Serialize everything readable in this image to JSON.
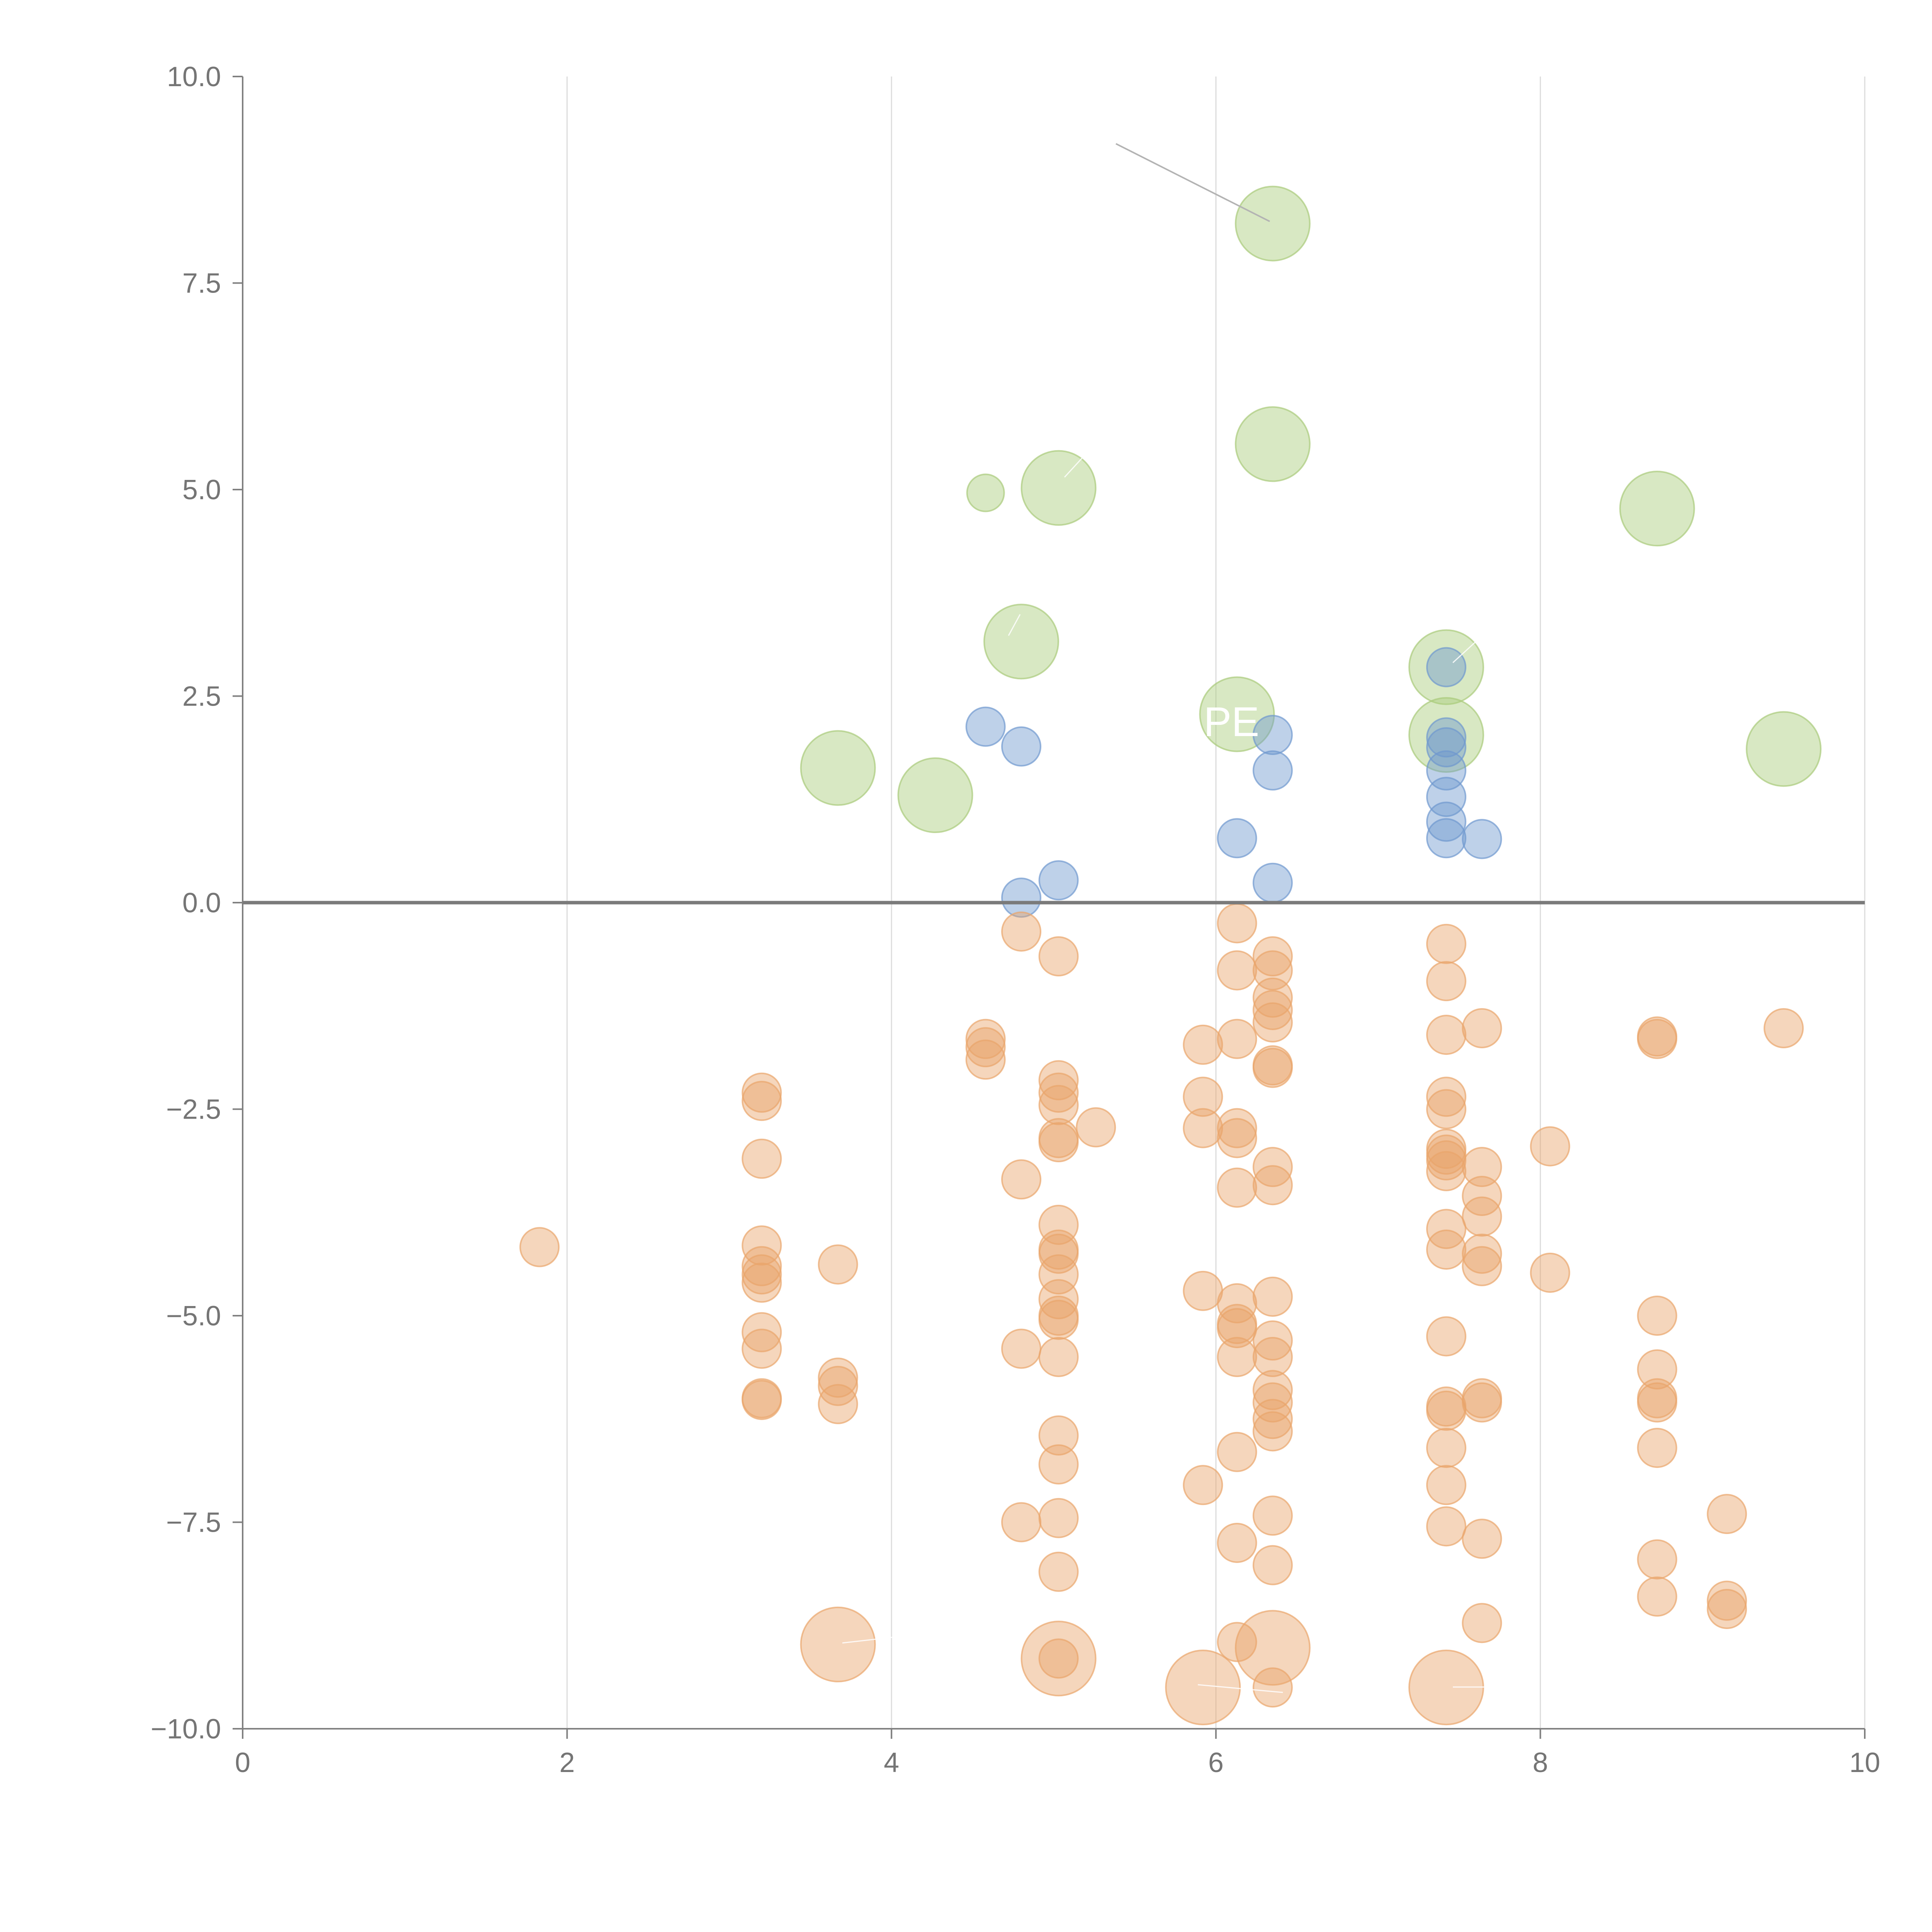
{
  "chart_data": {
    "type": "scatter",
    "title": "",
    "xlabel": "",
    "ylabel": "",
    "xlim": [
      0,
      10
    ],
    "ylim": [
      -10,
      10
    ],
    "x_ticks": [
      0,
      2,
      4,
      6,
      8,
      10
    ],
    "x_tick_labels": [
      "0",
      "2",
      "4",
      "6",
      "8",
      "10"
    ],
    "y_ticks": [
      -10,
      -7.5,
      -5,
      -2.5,
      0,
      2.5,
      5,
      7.5,
      10
    ],
    "y_tick_labels": [
      "−10.0",
      "−7.5",
      "−5.0",
      "−2.5",
      "0.0",
      "2.5",
      "5.0",
      "7.5",
      "10.0"
    ],
    "vertical_grid": true,
    "horizontal_grid": false,
    "zero_line": true,
    "legend": "none",
    "colors": {
      "green": "#a9cb7a",
      "blue": "#6f98cf",
      "orange": "#e9a56b",
      "axis": "#808080",
      "grid": "#dcdcdc"
    },
    "series": [
      {
        "color": "green",
        "points": [
          [
            6.35,
            8.22,
            "l"
          ],
          [
            6.35,
            5.55,
            "l"
          ],
          [
            5.03,
            5.02,
            "l"
          ],
          [
            4.58,
            4.96,
            "s"
          ],
          [
            8.72,
            4.77,
            "l"
          ],
          [
            4.8,
            3.16,
            "l"
          ],
          [
            7.42,
            2.85,
            "l"
          ],
          [
            6.13,
            2.28,
            "l"
          ],
          [
            7.42,
            2.03,
            "l"
          ],
          [
            9.5,
            1.86,
            "l"
          ],
          [
            3.67,
            1.63,
            "l"
          ],
          [
            4.27,
            1.3,
            "l"
          ]
        ]
      },
      {
        "color": "blue",
        "points": [
          [
            4.58,
            2.13
          ],
          [
            4.8,
            1.89
          ],
          [
            6.35,
            2.03
          ],
          [
            6.35,
            1.6
          ],
          [
            7.42,
            2.85
          ],
          [
            7.42,
            2.0
          ],
          [
            7.42,
            1.88
          ],
          [
            7.42,
            1.6
          ],
          [
            7.42,
            1.28
          ],
          [
            7.42,
            0.98
          ],
          [
            7.42,
            0.78
          ],
          [
            7.64,
            0.77
          ],
          [
            6.13,
            0.78
          ],
          [
            6.35,
            0.24
          ],
          [
            5.03,
            0.27
          ],
          [
            4.8,
            0.06
          ]
        ]
      },
      {
        "color": "orange",
        "points": [
          [
            1.83,
            -4.17
          ],
          [
            3.2,
            -2.3
          ],
          [
            3.2,
            -2.4
          ],
          [
            3.2,
            -3.1
          ],
          [
            3.2,
            -4.15
          ],
          [
            3.2,
            -4.4
          ],
          [
            3.2,
            -4.5
          ],
          [
            3.2,
            -4.6
          ],
          [
            3.2,
            -5.2
          ],
          [
            3.2,
            -5.4
          ],
          [
            3.2,
            -6.0
          ],
          [
            3.2,
            -6.02
          ],
          [
            3.67,
            -4.38
          ],
          [
            3.67,
            -5.75
          ],
          [
            3.67,
            -5.85
          ],
          [
            3.67,
            -6.07
          ],
          [
            4.58,
            -1.65
          ],
          [
            4.58,
            -1.75
          ],
          [
            4.58,
            -1.9
          ],
          [
            4.8,
            -0.35
          ],
          [
            4.8,
            -3.35
          ],
          [
            4.8,
            -5.4
          ],
          [
            4.8,
            -7.5
          ],
          [
            5.03,
            -0.65
          ],
          [
            5.03,
            -2.15
          ],
          [
            5.03,
            -2.3
          ],
          [
            5.03,
            -2.45
          ],
          [
            5.03,
            -2.85
          ],
          [
            5.03,
            -2.9
          ],
          [
            5.03,
            -3.9
          ],
          [
            5.03,
            -4.2
          ],
          [
            5.03,
            -4.25
          ],
          [
            5.03,
            -4.5
          ],
          [
            5.03,
            -4.8
          ],
          [
            5.03,
            -5.0
          ],
          [
            5.03,
            -5.05
          ],
          [
            5.03,
            -5.5
          ],
          [
            5.03,
            -6.45
          ],
          [
            5.03,
            -6.8
          ],
          [
            5.03,
            -7.45
          ],
          [
            5.03,
            -8.1
          ],
          [
            5.03,
            -9.15
          ],
          [
            5.26,
            -2.72
          ],
          [
            5.92,
            -1.72
          ],
          [
            5.92,
            -2.35
          ],
          [
            5.92,
            -2.73
          ],
          [
            5.92,
            -4.7
          ],
          [
            5.92,
            -7.05
          ],
          [
            6.13,
            -0.25
          ],
          [
            6.13,
            -0.82
          ],
          [
            6.13,
            -1.65
          ],
          [
            6.13,
            -2.73
          ],
          [
            6.13,
            -2.85
          ],
          [
            6.13,
            -3.45
          ],
          [
            6.13,
            -4.85
          ],
          [
            6.13,
            -5.1
          ],
          [
            6.13,
            -5.15
          ],
          [
            6.13,
            -5.5
          ],
          [
            6.13,
            -6.65
          ],
          [
            6.13,
            -7.75
          ],
          [
            6.13,
            -8.95
          ],
          [
            6.35,
            -0.65
          ],
          [
            6.35,
            -0.82
          ],
          [
            6.35,
            -1.15
          ],
          [
            6.35,
            -1.3
          ],
          [
            6.35,
            -1.45
          ],
          [
            6.35,
            -1.97
          ],
          [
            6.35,
            -2.0
          ],
          [
            6.35,
            -3.2
          ],
          [
            6.35,
            -3.42
          ],
          [
            6.35,
            -4.77
          ],
          [
            6.35,
            -5.3
          ],
          [
            6.35,
            -5.5
          ],
          [
            6.35,
            -5.9
          ],
          [
            6.35,
            -6.05
          ],
          [
            6.35,
            -6.25
          ],
          [
            6.35,
            -6.4
          ],
          [
            6.35,
            -7.42
          ],
          [
            6.35,
            -8.02
          ],
          [
            6.35,
            -9.5
          ],
          [
            7.42,
            -0.5
          ],
          [
            7.42,
            -0.95
          ],
          [
            7.42,
            -1.6
          ],
          [
            7.42,
            -2.35
          ],
          [
            7.42,
            -2.5
          ],
          [
            7.42,
            -2.98
          ],
          [
            7.42,
            -3.05
          ],
          [
            7.42,
            -3.12
          ],
          [
            7.42,
            -3.25
          ],
          [
            7.42,
            -3.95
          ],
          [
            7.42,
            -4.2
          ],
          [
            7.42,
            -5.25
          ],
          [
            7.42,
            -6.1
          ],
          [
            7.42,
            -6.15
          ],
          [
            7.42,
            -6.6
          ],
          [
            7.42,
            -7.05
          ],
          [
            7.42,
            -7.55
          ],
          [
            7.64,
            -1.52
          ],
          [
            7.64,
            -3.2
          ],
          [
            7.64,
            -3.55
          ],
          [
            7.64,
            -3.8
          ],
          [
            7.64,
            -4.25
          ],
          [
            7.64,
            -4.4
          ],
          [
            7.64,
            -6.0
          ],
          [
            7.64,
            -6.05
          ],
          [
            7.64,
            -7.7
          ],
          [
            7.64,
            -8.72
          ],
          [
            8.06,
            -2.95
          ],
          [
            8.06,
            -4.48
          ],
          [
            8.72,
            -1.65
          ],
          [
            8.72,
            -1.62
          ],
          [
            8.72,
            -5.0
          ],
          [
            8.72,
            -5.65
          ],
          [
            8.72,
            -6.0
          ],
          [
            8.72,
            -6.05
          ],
          [
            8.72,
            -6.6
          ],
          [
            8.72,
            -7.95
          ],
          [
            8.72,
            -8.4
          ],
          [
            9.15,
            -7.4
          ],
          [
            9.15,
            -8.45
          ],
          [
            9.15,
            -8.55
          ],
          [
            9.5,
            -1.52
          ],
          [
            3.67,
            -8.98,
            "l"
          ],
          [
            5.03,
            -9.15,
            "l"
          ],
          [
            5.92,
            -9.5,
            "l"
          ],
          [
            6.35,
            -9.02,
            "l"
          ],
          [
            7.42,
            -9.5,
            "l"
          ]
        ]
      }
    ],
    "annotations": [
      "PE"
    ]
  }
}
